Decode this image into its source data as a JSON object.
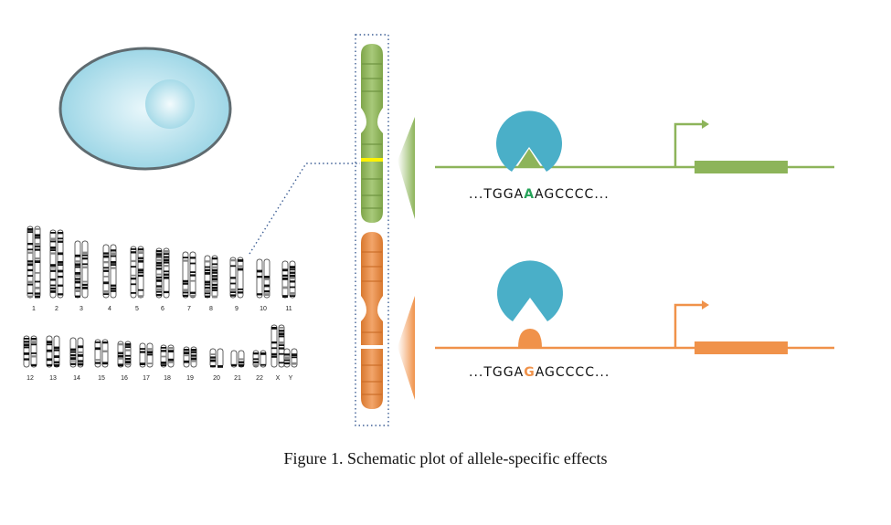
{
  "karyotype": {
    "row1": [
      "1",
      "2",
      "3",
      "4",
      "5",
      "6",
      "7",
      "8",
      "9",
      "10",
      "11"
    ],
    "row2": [
      "12",
      "13",
      "14",
      "15",
      "16",
      "17",
      "18",
      "19",
      "20",
      "21",
      "22",
      "X",
      "Y"
    ]
  },
  "alleles": [
    {
      "id": "green",
      "color": "#8DB45A",
      "variant_color": "#27A35A",
      "seq_prefix": "...TGGA",
      "variant": "A",
      "seq_suffix": "AGCCCC...",
      "bound": true
    },
    {
      "id": "orange",
      "color": "#F0924A",
      "variant_color": "#F0924A",
      "seq_prefix": "...TGGA",
      "variant": "G",
      "seq_suffix": "AGCCCC...",
      "bound": false
    }
  ],
  "colors": {
    "cell": "#8FD0E2",
    "nucleus": "#BDE6F0",
    "tf": "#4AAFC8",
    "highlight": "#FFF200"
  },
  "caption": "Figure 1. Schematic plot of allele-specific effects"
}
